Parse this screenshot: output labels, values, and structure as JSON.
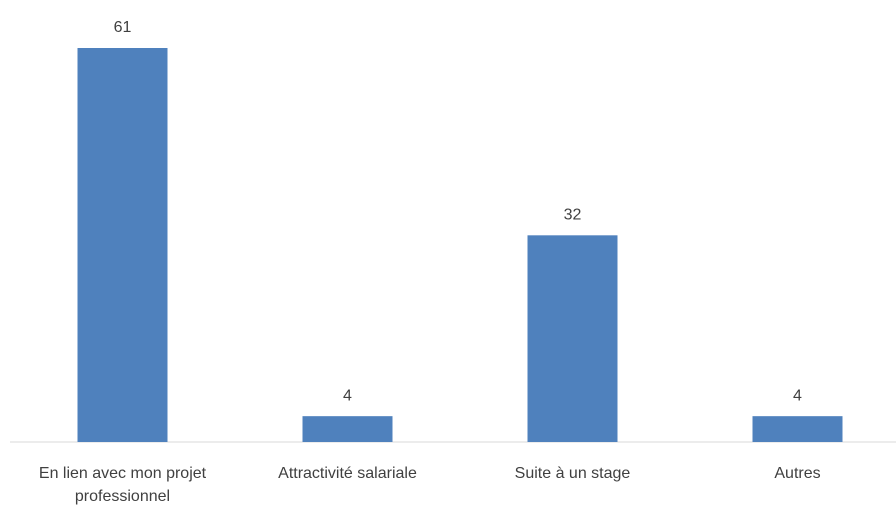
{
  "chart_data": {
    "type": "bar",
    "categories": [
      "En lien avec mon projet professionnel",
      "Attractivité salariale",
      "Suite à un stage",
      "Autres"
    ],
    "values": [
      61,
      4,
      32,
      4
    ],
    "color": "#4f81bd"
  }
}
